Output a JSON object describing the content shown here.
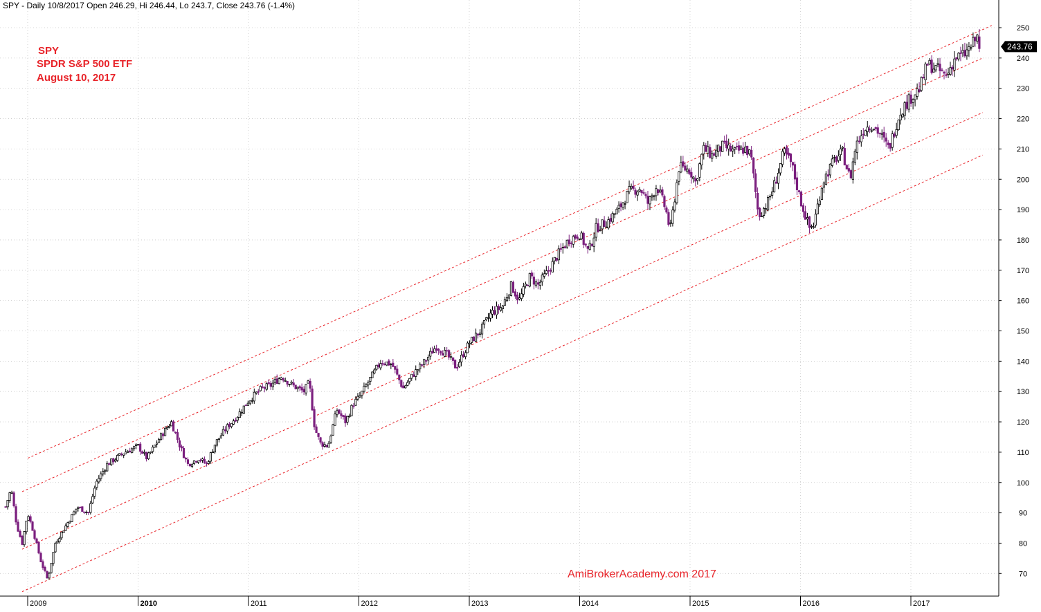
{
  "header": {
    "title": "SPY - Daily 10/8/2017 Open 246.29, Hi 246.44, Lo 243.7, Close 243.76 (-1.4%)"
  },
  "annotations": {
    "ticker": "SPY",
    "name": "SPDR S&P 500 ETF",
    "date": "August 10, 2017",
    "color": "#e8242a"
  },
  "watermark": {
    "text": "AmiBrokerAcademy.com  2017",
    "color": "#e8242a"
  },
  "price_badge": {
    "label": "243.76",
    "value": 243.76
  },
  "colors": {
    "up_candle": "#000000",
    "down_candle": "#7b1f7e",
    "channel_lines": "#e8242a",
    "grid": "#c8c8c8",
    "axis": "#000000"
  },
  "chart_data": {
    "type": "candlestick",
    "title": "SPY - Daily",
    "ylim": [
      62,
      253
    ],
    "y_axis_position": "right",
    "y_ticks": [
      {
        "value": 70,
        "label": "70"
      },
      {
        "value": 80,
        "label": "80"
      },
      {
        "value": 90,
        "label": "90"
      },
      {
        "value": 100,
        "label": "100"
      },
      {
        "value": 110,
        "label": "110"
      },
      {
        "value": 120,
        "label": "120"
      },
      {
        "value": 130,
        "label": "130"
      },
      {
        "value": 140,
        "label": "140"
      },
      {
        "value": 150,
        "label": "150"
      },
      {
        "value": 160,
        "label": "160"
      },
      {
        "value": 170,
        "label": "170"
      },
      {
        "value": 180,
        "label": "180"
      },
      {
        "value": 190,
        "label": "190"
      },
      {
        "value": 200,
        "label": "200"
      },
      {
        "value": 210,
        "label": "210"
      },
      {
        "value": 220,
        "label": "220"
      },
      {
        "value": 230,
        "label": "230"
      },
      {
        "value": 240,
        "label": "240"
      },
      {
        "value": 250,
        "label": "250"
      }
    ],
    "xlim": [
      2008.8,
      2017.8
    ],
    "x_ticks": [
      {
        "value": 2009,
        "label": "2009",
        "bold": false
      },
      {
        "value": 2010,
        "label": "2010",
        "bold": true
      },
      {
        "value": 2011,
        "label": "2011",
        "bold": false
      },
      {
        "value": 2012,
        "label": "2012",
        "bold": false
      },
      {
        "value": 2013,
        "label": "2013",
        "bold": false
      },
      {
        "value": 2014,
        "label": "2014",
        "bold": false
      },
      {
        "value": 2015,
        "label": "2015",
        "bold": false
      },
      {
        "value": 2016,
        "label": "2016",
        "bold": false
      },
      {
        "value": 2017,
        "label": "2017",
        "bold": false
      }
    ],
    "price_path": [
      [
        2008.8,
        92
      ],
      [
        2008.85,
        98
      ],
      [
        2008.9,
        86
      ],
      [
        2008.95,
        80
      ],
      [
        2009.0,
        90
      ],
      [
        2009.05,
        84
      ],
      [
        2009.12,
        74
      ],
      [
        2009.18,
        68
      ],
      [
        2009.25,
        80
      ],
      [
        2009.35,
        86
      ],
      [
        2009.45,
        92
      ],
      [
        2009.55,
        90
      ],
      [
        2009.62,
        100
      ],
      [
        2009.72,
        106
      ],
      [
        2009.8,
        108
      ],
      [
        2009.88,
        110
      ],
      [
        2010.0,
        112
      ],
      [
        2010.08,
        108
      ],
      [
        2010.2,
        115
      ],
      [
        2010.3,
        120
      ],
      [
        2010.38,
        112
      ],
      [
        2010.45,
        106
      ],
      [
        2010.55,
        108
      ],
      [
        2010.62,
        106
      ],
      [
        2010.7,
        113
      ],
      [
        2010.8,
        118
      ],
      [
        2010.9,
        122
      ],
      [
        2011.0,
        127
      ],
      [
        2011.12,
        131
      ],
      [
        2011.2,
        132
      ],
      [
        2011.3,
        135
      ],
      [
        2011.4,
        132
      ],
      [
        2011.5,
        130
      ],
      [
        2011.55,
        133
      ],
      [
        2011.6,
        118
      ],
      [
        2011.65,
        113
      ],
      [
        2011.72,
        112
      ],
      [
        2011.8,
        124
      ],
      [
        2011.88,
        120
      ],
      [
        2011.95,
        126
      ],
      [
        2012.0,
        128
      ],
      [
        2012.1,
        134
      ],
      [
        2012.2,
        140
      ],
      [
        2012.3,
        139
      ],
      [
        2012.4,
        131
      ],
      [
        2012.5,
        136
      ],
      [
        2012.6,
        140
      ],
      [
        2012.7,
        145
      ],
      [
        2012.8,
        142
      ],
      [
        2012.88,
        138
      ],
      [
        2013.0,
        146
      ],
      [
        2013.1,
        150
      ],
      [
        2013.2,
        156
      ],
      [
        2013.3,
        158
      ],
      [
        2013.38,
        165
      ],
      [
        2013.45,
        160
      ],
      [
        2013.55,
        168
      ],
      [
        2013.62,
        165
      ],
      [
        2013.72,
        170
      ],
      [
        2013.8,
        175
      ],
      [
        2013.9,
        180
      ],
      [
        2014.0,
        182
      ],
      [
        2014.08,
        176
      ],
      [
        2014.15,
        184
      ],
      [
        2014.25,
        186
      ],
      [
        2014.35,
        190
      ],
      [
        2014.45,
        196
      ],
      [
        2014.55,
        197
      ],
      [
        2014.62,
        192
      ],
      [
        2014.7,
        198
      ],
      [
        2014.78,
        190
      ],
      [
        2014.82,
        183
      ],
      [
        2014.9,
        204
      ],
      [
        2015.0,
        203
      ],
      [
        2015.05,
        199
      ],
      [
        2015.12,
        210
      ],
      [
        2015.2,
        208
      ],
      [
        2015.3,
        211
      ],
      [
        2015.4,
        209
      ],
      [
        2015.5,
        210
      ],
      [
        2015.55,
        208
      ],
      [
        2015.62,
        188
      ],
      [
        2015.7,
        192
      ],
      [
        2015.78,
        200
      ],
      [
        2015.85,
        209
      ],
      [
        2015.92,
        205
      ],
      [
        2016.0,
        193
      ],
      [
        2016.08,
        184
      ],
      [
        2016.12,
        185
      ],
      [
        2016.2,
        199
      ],
      [
        2016.3,
        206
      ],
      [
        2016.38,
        209
      ],
      [
        2016.45,
        200
      ],
      [
        2016.5,
        211
      ],
      [
        2016.58,
        217
      ],
      [
        2016.65,
        218
      ],
      [
        2016.72,
        215
      ],
      [
        2016.8,
        210
      ],
      [
        2016.9,
        222
      ],
      [
        2017.0,
        227
      ],
      [
        2017.08,
        230
      ],
      [
        2017.15,
        238
      ],
      [
        2017.25,
        236
      ],
      [
        2017.32,
        234
      ],
      [
        2017.4,
        240
      ],
      [
        2017.48,
        241
      ],
      [
        2017.55,
        244
      ],
      [
        2017.6,
        247
      ],
      [
        2017.62,
        243.76
      ]
    ],
    "channel_lines": [
      {
        "x": [
          2009.0,
          2017.75
        ],
        "y": [
          108,
          251
        ]
      },
      {
        "x": [
          2008.95,
          2017.65
        ],
        "y": [
          97,
          240
        ]
      },
      {
        "x": [
          2008.95,
          2017.65
        ],
        "y": [
          78,
          222
        ]
      },
      {
        "x": [
          2008.95,
          2017.65
        ],
        "y": [
          64,
          208
        ]
      }
    ]
  }
}
